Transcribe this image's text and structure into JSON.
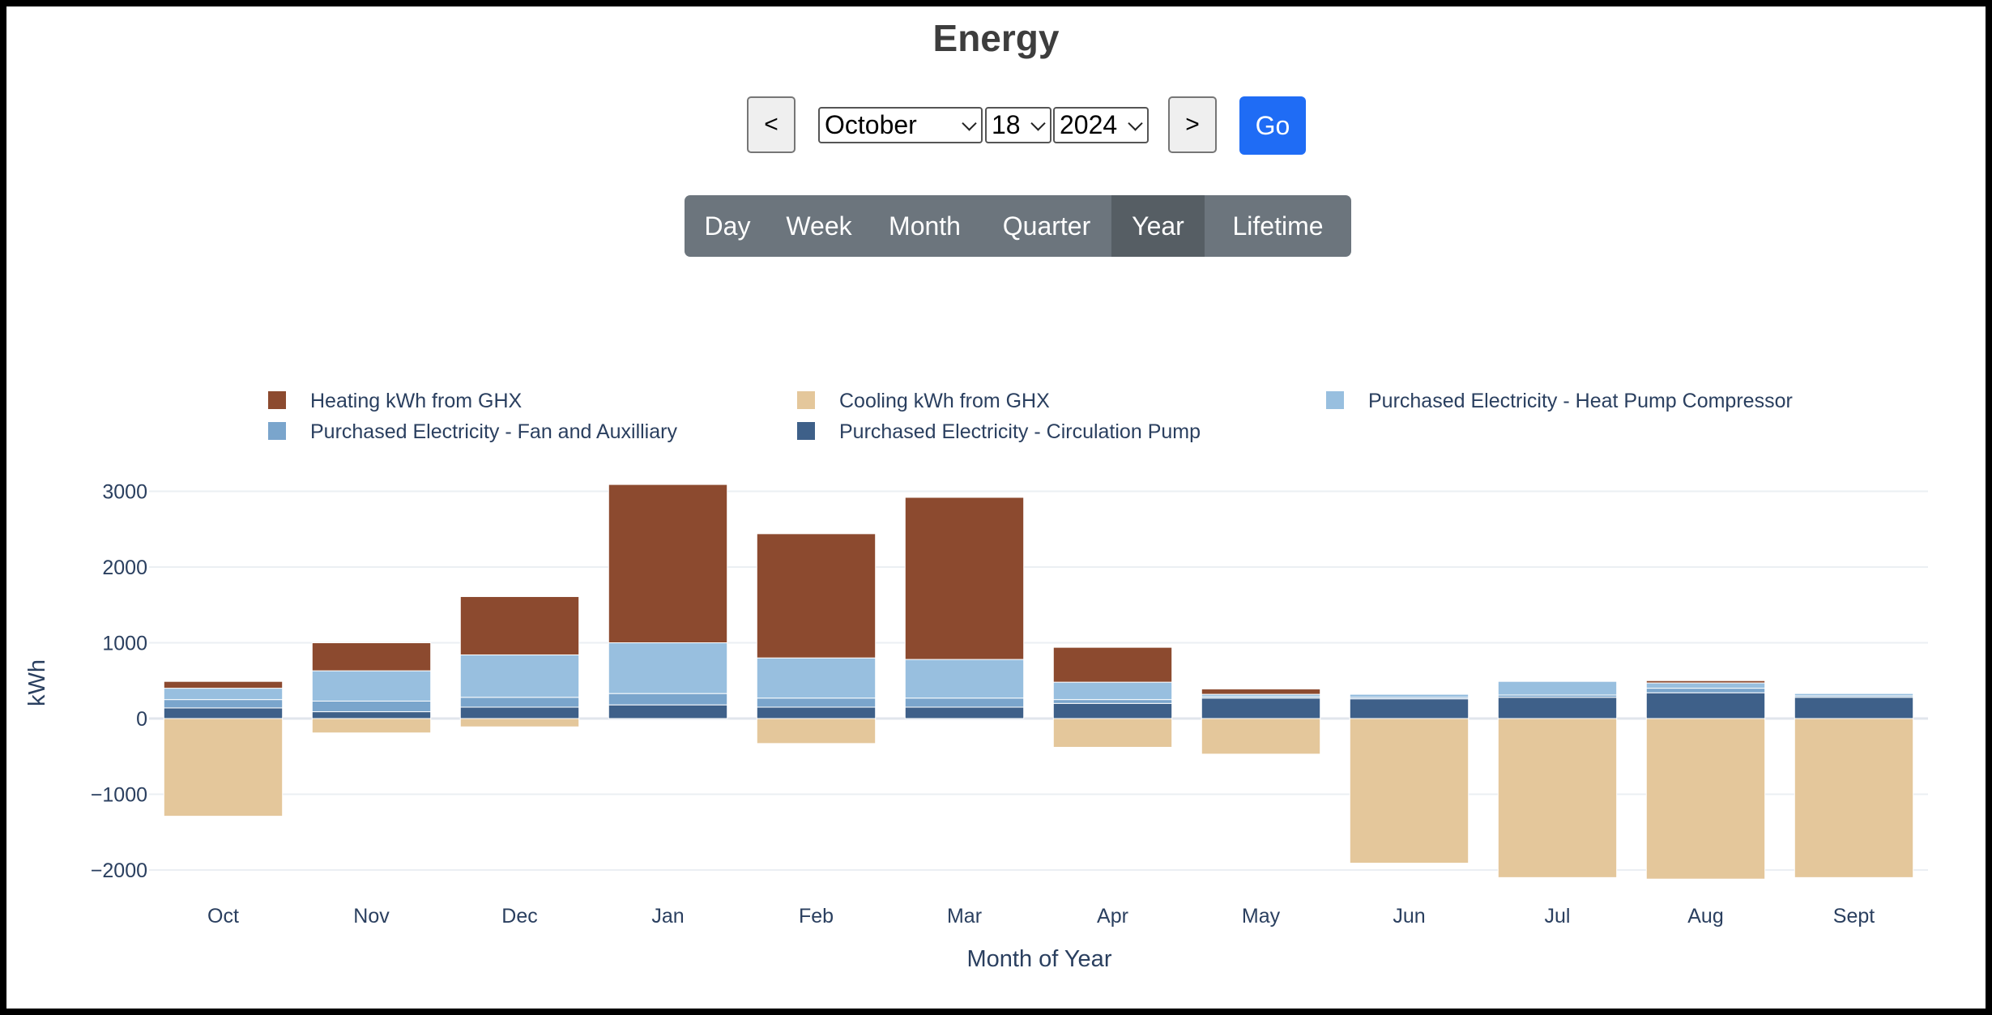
{
  "header": {
    "title": "Energy"
  },
  "controls": {
    "prev_label": "<",
    "next_label": ">",
    "month": "October",
    "day": "18",
    "year": "2024",
    "go_label": "Go",
    "ranges": [
      "Day",
      "Week",
      "Month",
      "Quarter",
      "Year",
      "Lifetime"
    ],
    "active_range": "Year"
  },
  "chart_data": {
    "type": "bar",
    "barmode": "relative",
    "xlabel": "Month of Year",
    "ylabel": "kWh",
    "ylim": [
      -2250,
      3180
    ],
    "yticks": [
      3000,
      2000,
      1000,
      0,
      -1000,
      -2000
    ],
    "ytick_labels": [
      "3000",
      "2000",
      "1000",
      "0",
      "−1000",
      "−2000"
    ],
    "categories": [
      "Oct",
      "Nov",
      "Dec",
      "Jan",
      "Feb",
      "Mar",
      "Apr",
      "May",
      "Jun",
      "Jul",
      "Aug",
      "Sept"
    ],
    "grid": true,
    "legend_position": "top",
    "series": [
      {
        "name": "Purchased Electricity - Circulation Pump",
        "color": "#3e6089",
        "values": [
          140,
          90,
          150,
          180,
          150,
          150,
          200,
          270,
          260,
          280,
          340,
          280
        ]
      },
      {
        "name": "Purchased Electricity - Fan and Auxilliary",
        "color": "#7aa5cc",
        "values": [
          110,
          140,
          130,
          150,
          120,
          120,
          50,
          20,
          20,
          30,
          60,
          20
        ]
      },
      {
        "name": "Purchased Electricity - Heat Pump Compressor",
        "color": "#98bfdf",
        "values": [
          150,
          400,
          560,
          670,
          530,
          510,
          230,
          30,
          40,
          180,
          70,
          30
        ]
      },
      {
        "name": "Heating kWh from GHX",
        "color": "#8c4a2f",
        "values": [
          90,
          370,
          770,
          2090,
          1640,
          2140,
          460,
          70,
          0,
          0,
          30,
          0
        ]
      },
      {
        "name": "Cooling kWh from GHX",
        "color": "#e4c79b",
        "values": [
          -1290,
          -190,
          -110,
          0,
          -330,
          0,
          -380,
          -470,
          -1910,
          -2100,
          -2120,
          -2100
        ]
      }
    ],
    "legend_order": [
      "Heating kWh from GHX",
      "Cooling kWh from GHX",
      "Purchased Electricity - Heat Pump Compressor",
      "Purchased Electricity - Fan and Auxilliary",
      "Purchased Electricity - Circulation Pump"
    ]
  }
}
